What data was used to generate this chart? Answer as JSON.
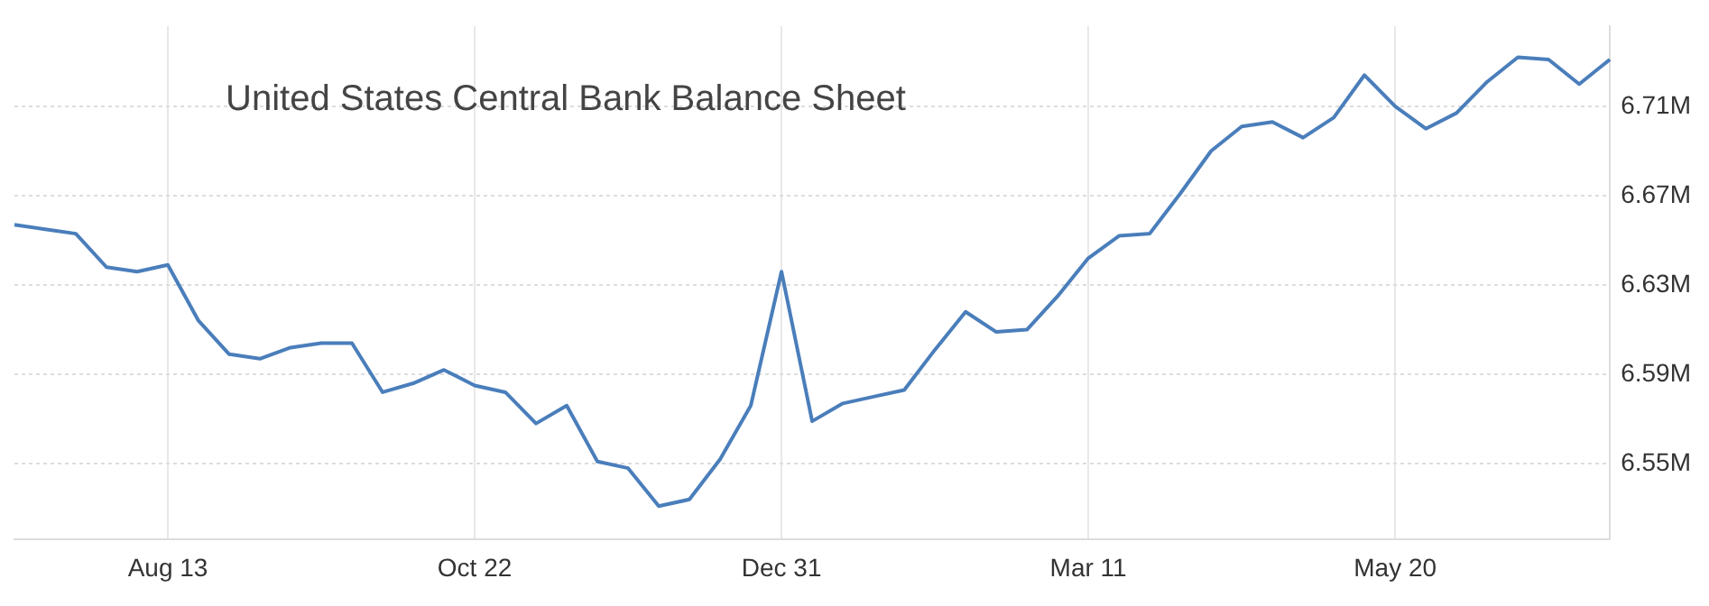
{
  "chart_data": {
    "type": "line",
    "title": "United States Central Bank Balance Sheet",
    "categories": [
      null,
      null,
      null,
      null,
      null,
      "Aug 13",
      null,
      null,
      null,
      null,
      null,
      null,
      null,
      null,
      null,
      "Oct 22",
      null,
      null,
      null,
      null,
      null,
      null,
      null,
      null,
      null,
      "Dec 31",
      null,
      null,
      null,
      null,
      null,
      null,
      null,
      null,
      null,
      "Mar 11",
      null,
      null,
      null,
      null,
      null,
      null,
      null,
      null,
      null,
      "May 20",
      null,
      null,
      null,
      null,
      null,
      null,
      null
    ],
    "series": [
      {
        "color": "#4a7ebb",
        "values": [
          6.657,
          6.655,
          6.653,
          6.638,
          6.636,
          6.639,
          6.614,
          6.599,
          6.597,
          6.602,
          6.604,
          6.604,
          6.582,
          6.586,
          6.592,
          6.585,
          6.582,
          6.568,
          6.576,
          6.551,
          6.548,
          6.531,
          6.534,
          6.552,
          6.576,
          6.636,
          6.569,
          6.577,
          6.58,
          6.583,
          6.601,
          6.618,
          6.609,
          6.61,
          6.625,
          6.642,
          6.652,
          6.653,
          6.671,
          6.69,
          6.701,
          6.703,
          6.696,
          6.705,
          6.724,
          6.71,
          6.7,
          6.707,
          6.721,
          6.732,
          6.731,
          6.72,
          6.731
        ]
      }
    ],
    "ylim": [
      6.516,
      6.746
    ],
    "yticks": [
      {
        "value": 6.55,
        "label": "6.55M"
      },
      {
        "value": 6.59,
        "label": "6.59M"
      },
      {
        "value": 6.63,
        "label": "6.63M"
      },
      {
        "value": 6.67,
        "label": "6.67M"
      },
      {
        "value": 6.71,
        "label": "6.71M"
      }
    ],
    "grid": true,
    "legend": false,
    "marker": "none",
    "line_style": "solid"
  }
}
